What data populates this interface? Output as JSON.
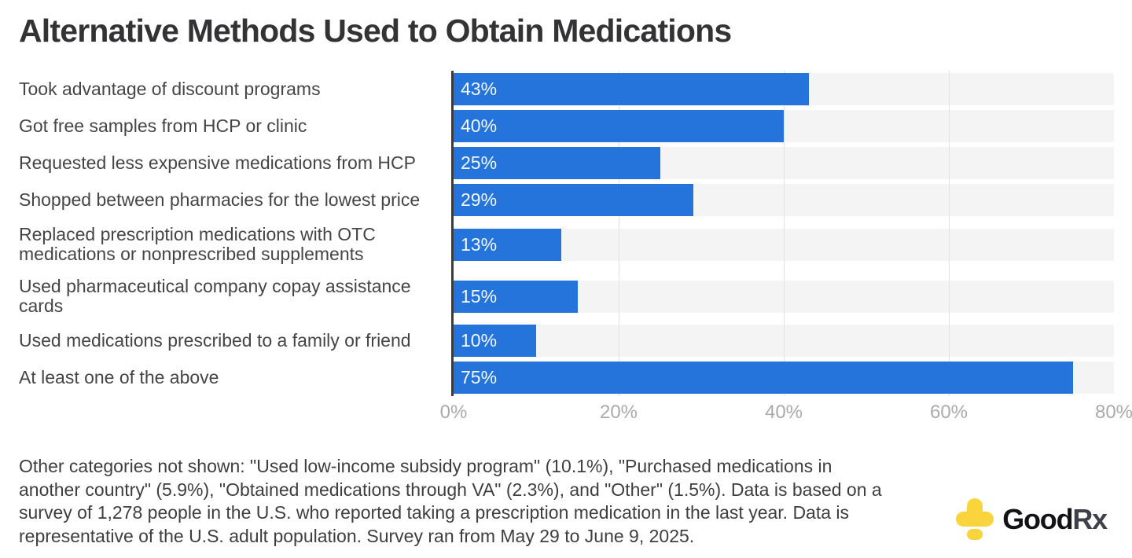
{
  "title": "Alternative Methods Used to Obtain Medications",
  "chart_data": {
    "type": "bar",
    "orientation": "horizontal",
    "categories": [
      "Took advantage of discount programs",
      "Got free samples from HCP or clinic",
      "Requested less expensive medications from HCP",
      "Shopped between pharmacies for the lowest price",
      "Replaced prescription medications with OTC medications or nonprescribed supplements",
      "Used pharmaceutical company copay assistance cards",
      "Used medications prescribed to a family or friend",
      "At least one of the above"
    ],
    "values": [
      43,
      40,
      25,
      29,
      13,
      15,
      10,
      75
    ],
    "value_labels": [
      "43%",
      "40%",
      "25%",
      "29%",
      "13%",
      "15%",
      "10%",
      "75%"
    ],
    "xlim": [
      0,
      80
    ],
    "x_tick_values": [
      0,
      20,
      40,
      60,
      80
    ],
    "x_tick_labels": [
      "0%",
      "20%",
      "40%",
      "60%",
      "80%"
    ],
    "gridline_values": [
      20,
      40,
      60
    ],
    "grid": true,
    "legend": false,
    "bar_color": "#2474DC",
    "track_color": "#F4F4F5"
  },
  "footnote": "Other categories not shown: \"Used low-income subsidy program\" (10.1%), \"Purchased medications in another country\" (5.9%), \"Obtained medications through VA\" (2.3%), and \"Other\" (1.5%). Data is based on a survey of 1,278 people in the U.S. who reported taking a prescription medication in the last year. Data is representative of the U.S. adult population. Survey ran from May 29 to June 9, 2025.",
  "logo": {
    "brand_good": "Good",
    "brand_rx": "Rx",
    "cross_color": "#F9D43C"
  },
  "colors": {
    "bar": "#2474DC",
    "track": "#F4F4F5",
    "gridline": "#E2E2E3",
    "axis_line": "#3C3C3C",
    "tick_label": "#AAAAAA",
    "category_label": "#454545",
    "title": "#333336",
    "footnote": "#3E3E3E"
  }
}
